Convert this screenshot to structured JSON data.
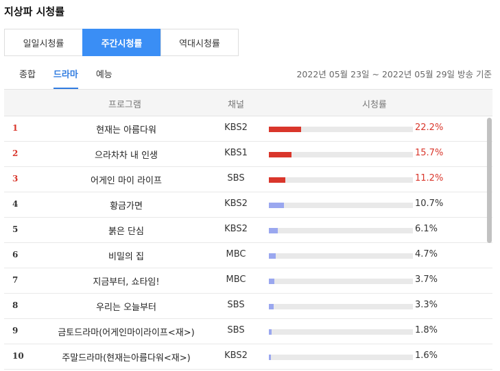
{
  "title": "지상파 시청률",
  "period_tabs": [
    {
      "label": "일일시청률",
      "active": false
    },
    {
      "label": "주간시청률",
      "active": true
    },
    {
      "label": "역대시청률",
      "active": false
    }
  ],
  "genre_tabs": [
    {
      "label": "종합",
      "active": false
    },
    {
      "label": "드라마",
      "active": true
    },
    {
      "label": "예능",
      "active": false
    }
  ],
  "date_range": "2022년 05월 23일 ~ 2022년 05월 29일 방송 기준",
  "table": {
    "headers": {
      "program": "프로그램",
      "channel": "채널",
      "rating": "시청률"
    },
    "rows": [
      {
        "rank": "1",
        "program": "현재는 아름다워",
        "channel": "KBS2",
        "rating": "22.2%",
        "value": 22.2
      },
      {
        "rank": "2",
        "program": "으라차차 내 인생",
        "channel": "KBS1",
        "rating": "15.7%",
        "value": 15.7
      },
      {
        "rank": "3",
        "program": "어게인 마이 라이프",
        "channel": "SBS",
        "rating": "11.2%",
        "value": 11.2
      },
      {
        "rank": "4",
        "program": "황금가면",
        "channel": "KBS2",
        "rating": "10.7%",
        "value": 10.7
      },
      {
        "rank": "5",
        "program": "붉은 단심",
        "channel": "KBS2",
        "rating": "6.1%",
        "value": 6.1
      },
      {
        "rank": "6",
        "program": "비밀의 집",
        "channel": "MBC",
        "rating": "4.7%",
        "value": 4.7
      },
      {
        "rank": "7",
        "program": "지금부터, 쇼타임!",
        "channel": "MBC",
        "rating": "3.7%",
        "value": 3.7
      },
      {
        "rank": "8",
        "program": "우리는 오늘부터",
        "channel": "SBS",
        "rating": "3.3%",
        "value": 3.3
      },
      {
        "rank": "9",
        "program": "금토드라마(어게인마이라이프<재>)",
        "channel": "SBS",
        "rating": "1.8%",
        "value": 1.8
      },
      {
        "rank": "10",
        "program": "주말드라마(현재는아름다워<재>)",
        "channel": "KBS2",
        "rating": "1.6%",
        "value": 1.6
      }
    ]
  },
  "colors": {
    "accent": "#3a8ef5",
    "top_rank": "#d9362b",
    "bar": "#9aa7ef"
  }
}
